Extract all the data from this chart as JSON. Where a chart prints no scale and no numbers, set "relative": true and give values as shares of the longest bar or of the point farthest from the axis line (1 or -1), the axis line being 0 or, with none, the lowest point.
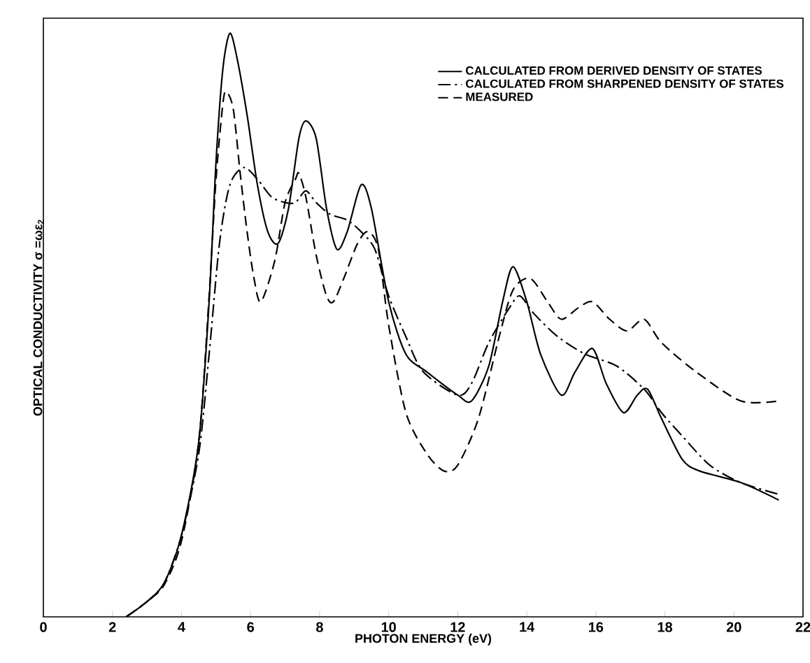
{
  "chart_data": {
    "type": "line",
    "xlabel": "PHOTON ENERGY (eV)",
    "ylabel": "OPTICAL CONDUCTIVITY σ =ωε$_{2}$",
    "relative": true,
    "xlim": [
      0,
      22
    ],
    "xticks": [
      0,
      2,
      4,
      6,
      8,
      10,
      12,
      14,
      16,
      18,
      20,
      22
    ],
    "legend": "top right",
    "grid": false,
    "series": [
      {
        "name": "CALCULATED FROM DERIVED DENSITY OF STATES",
        "color": "#000000",
        "line_style": "solid",
        "x": [
          2.4,
          3,
          3.5,
          4,
          4.5,
          4.8,
          5.0,
          5.2,
          5.4,
          5.6,
          5.9,
          6.2,
          6.5,
          6.8,
          7.1,
          7.4,
          7.6,
          7.9,
          8.2,
          8.5,
          8.8,
          9.2,
          9.5,
          10,
          10.5,
          11.1,
          12.0,
          12.4,
          12.9,
          13.3,
          13.6,
          14.0,
          14.4,
          15.0,
          15.4,
          15.9,
          16.3,
          16.8,
          17.2,
          17.5,
          17.9,
          18.5,
          19.0,
          20.2,
          21.3
        ],
        "values": [
          0,
          0.026,
          0.058,
          0.14,
          0.3,
          0.54,
          0.78,
          0.94,
          1.0,
          0.96,
          0.86,
          0.74,
          0.66,
          0.64,
          0.7,
          0.82,
          0.85,
          0.82,
          0.7,
          0.63,
          0.66,
          0.74,
          0.7,
          0.54,
          0.45,
          0.42,
          0.38,
          0.37,
          0.43,
          0.54,
          0.6,
          0.54,
          0.45,
          0.38,
          0.42,
          0.46,
          0.4,
          0.35,
          0.38,
          0.39,
          0.34,
          0.27,
          0.25,
          0.23,
          0.2
        ]
      },
      {
        "name": "CALCULATED FROM SHARPENED DENSITY OF STATES",
        "color": "#000000",
        "line_style": "dashdot",
        "x": [
          2.4,
          3,
          3.5,
          4,
          4.5,
          4.8,
          5.1,
          5.4,
          5.8,
          6.2,
          6.6,
          7.0,
          7.3,
          7.6,
          7.9,
          8.3,
          8.8,
          9.2,
          9.6,
          10,
          10.5,
          11,
          12.0,
          12.4,
          12.9,
          13.5,
          13.8,
          14.2,
          14.9,
          15.7,
          16.6,
          17.4,
          17.9,
          18.5,
          19.3,
          20.2,
          21.3
        ],
        "values": [
          0,
          0.026,
          0.058,
          0.14,
          0.28,
          0.45,
          0.64,
          0.74,
          0.77,
          0.75,
          0.72,
          0.71,
          0.71,
          0.73,
          0.71,
          0.69,
          0.68,
          0.66,
          0.63,
          0.55,
          0.48,
          0.42,
          0.38,
          0.4,
          0.47,
          0.53,
          0.55,
          0.52,
          0.48,
          0.45,
          0.43,
          0.39,
          0.35,
          0.31,
          0.26,
          0.23,
          0.21
        ]
      },
      {
        "name": "MEASURED",
        "color": "#000000",
        "line_style": "dashed",
        "x": [
          2.4,
          3,
          3.5,
          4,
          4.5,
          4.8,
          5.0,
          5.2,
          5.3,
          5.5,
          5.7,
          5.9,
          6.1,
          6.3,
          6.7,
          7.0,
          7.3,
          7.4,
          7.6,
          7.9,
          8.2,
          8.4,
          8.7,
          9.1,
          9.4,
          9.7,
          10.0,
          10.5,
          11.1,
          11.6,
          12.0,
          12.6,
          13.2,
          13.6,
          14.1,
          14.6,
          15.0,
          15.5,
          15.9,
          16.4,
          16.9,
          17.4,
          17.9,
          18.9,
          20.2,
          21.3
        ],
        "values": [
          0,
          0.026,
          0.055,
          0.13,
          0.3,
          0.55,
          0.75,
          0.88,
          0.9,
          0.87,
          0.76,
          0.66,
          0.58,
          0.54,
          0.61,
          0.71,
          0.75,
          0.76,
          0.72,
          0.62,
          0.55,
          0.54,
          0.58,
          0.64,
          0.66,
          0.63,
          0.5,
          0.35,
          0.28,
          0.25,
          0.26,
          0.34,
          0.48,
          0.56,
          0.58,
          0.54,
          0.51,
          0.53,
          0.54,
          0.51,
          0.49,
          0.51,
          0.47,
          0.42,
          0.37,
          0.37
        ]
      }
    ]
  }
}
